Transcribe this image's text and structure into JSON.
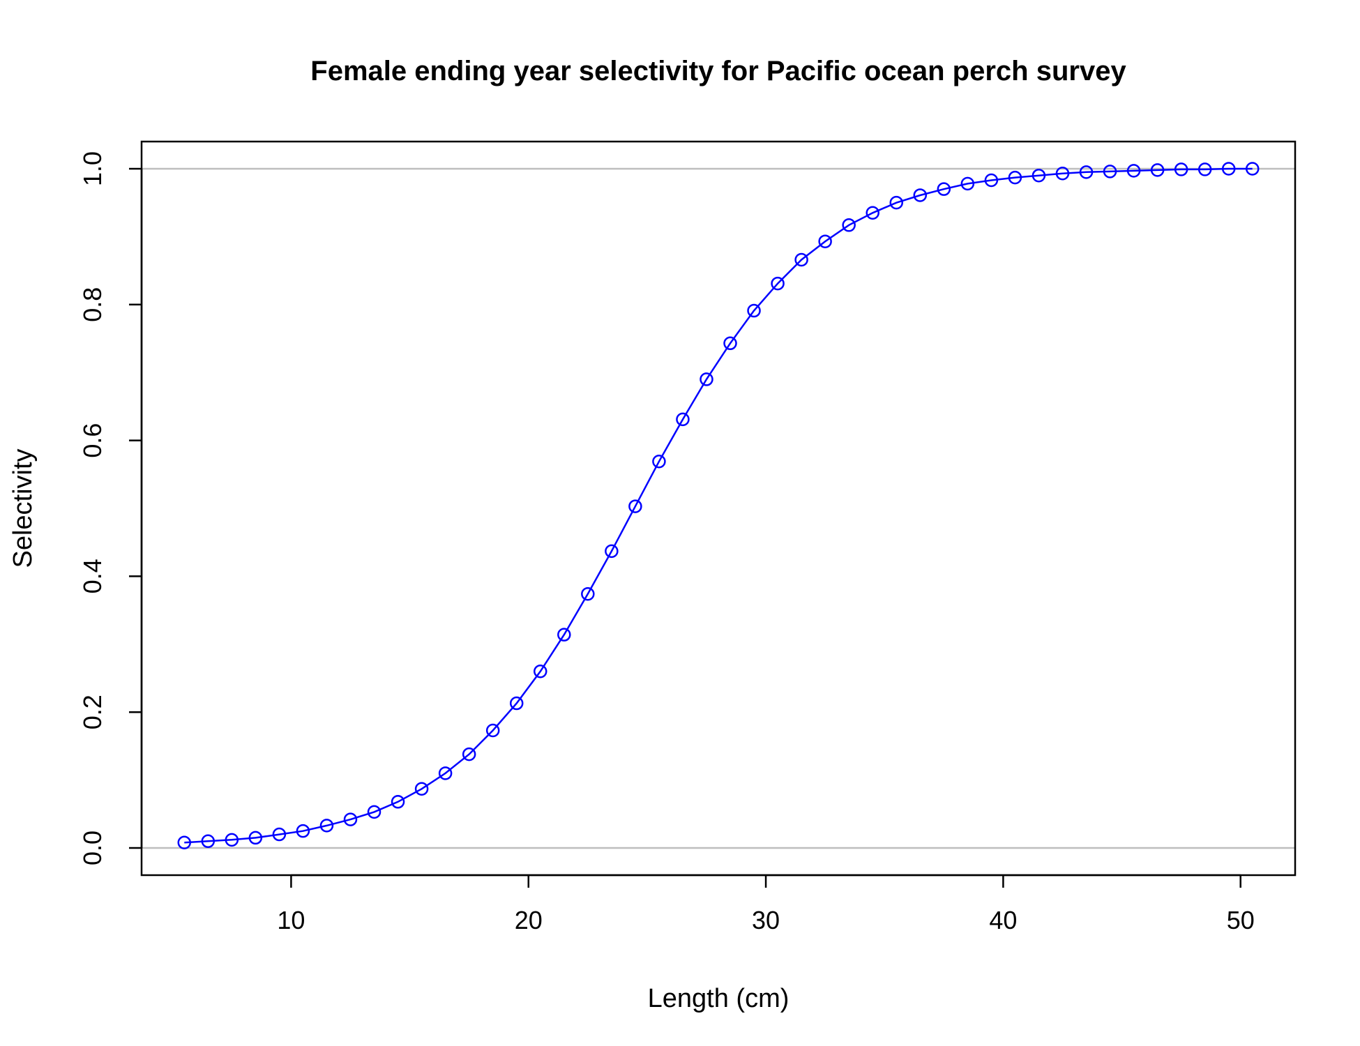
{
  "chart_data": {
    "type": "line",
    "title": "Female ending year selectivity for Pacific ocean perch survey",
    "xlabel": "Length (cm)",
    "ylabel": "Selectivity",
    "xlim": [
      3.7,
      52.3
    ],
    "ylim": [
      -0.04,
      1.04
    ],
    "x_ticks": [
      "10",
      "20",
      "30",
      "40",
      "50"
    ],
    "y_ticks": [
      "0.0",
      "0.2",
      "0.4",
      "0.6",
      "0.8",
      "1.0"
    ],
    "reference_lines_y": [
      0,
      1
    ],
    "reference_line_color": "#bebebe",
    "series_color": "#0000ff",
    "marker": "open-circle",
    "series": [
      {
        "x": [
          5.5,
          6.5,
          7.5,
          8.5,
          9.5,
          10.5,
          11.5,
          12.5,
          13.5,
          14.5,
          15.5,
          16.5,
          17.5,
          18.5,
          19.5,
          20.5,
          21.5,
          22.5,
          23.5,
          24.5,
          25.5,
          26.5,
          27.5,
          28.5,
          29.5,
          30.5,
          31.5,
          32.5,
          33.5,
          34.5,
          35.5,
          36.5,
          37.5,
          38.5,
          39.5,
          40.5,
          41.5,
          42.5,
          43.5,
          44.5,
          45.5,
          46.5,
          47.5,
          48.5,
          49.5,
          50.5
        ],
        "y": [
          0.008,
          0.01,
          0.012,
          0.015,
          0.02,
          0.025,
          0.033,
          0.042,
          0.053,
          0.068,
          0.087,
          0.11,
          0.138,
          0.173,
          0.213,
          0.26,
          0.314,
          0.374,
          0.437,
          0.503,
          0.569,
          0.631,
          0.69,
          0.743,
          0.791,
          0.831,
          0.866,
          0.893,
          0.917,
          0.935,
          0.95,
          0.961,
          0.97,
          0.978,
          0.983,
          0.987,
          0.99,
          0.993,
          0.995,
          0.996,
          0.997,
          0.998,
          0.999,
          0.999,
          1.0,
          1.0
        ]
      }
    ]
  }
}
